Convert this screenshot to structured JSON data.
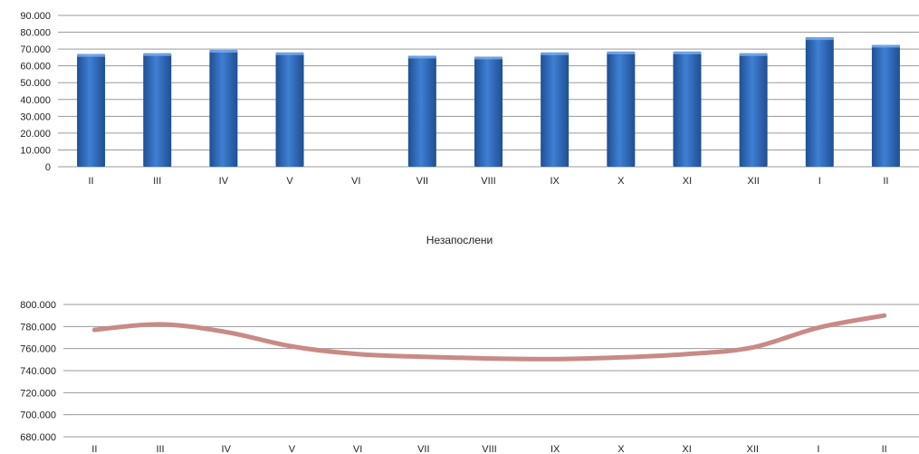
{
  "chart_data": [
    {
      "type": "bar",
      "title": "",
      "categories": [
        "II",
        "III",
        "IV",
        "V",
        "VI",
        "VII",
        "VIII",
        "IX",
        "X",
        "XI",
        "XII",
        "I",
        "II"
      ],
      "values": [
        67000,
        67500,
        69500,
        68000,
        0,
        66000,
        65500,
        68000,
        68500,
        68500,
        67500,
        77000,
        72500
      ],
      "yticks": [
        "0",
        "10.000",
        "20.000",
        "30.000",
        "40.000",
        "50.000",
        "60.000",
        "70.000",
        "80.000",
        "90.000"
      ],
      "ylim": [
        0,
        90000
      ],
      "grid": true,
      "colors": {
        "bar": "#3f7fd4",
        "bar_dark": "#1f4f92",
        "grid": "#9a9a9a"
      }
    },
    {
      "type": "line",
      "title": "Незапослени",
      "categories": [
        "II",
        "III",
        "IV",
        "V",
        "VI",
        "VII",
        "VIII",
        "IX",
        "X",
        "XI",
        "XII",
        "I",
        "II"
      ],
      "values": [
        777000,
        782000,
        775000,
        762000,
        755000,
        752500,
        751000,
        750500,
        752000,
        755000,
        761000,
        779000,
        790000
      ],
      "yticks": [
        "680.000",
        "700.000",
        "720.000",
        "740.000",
        "760.000",
        "780.000",
        "800.000"
      ],
      "ylim": [
        680000,
        800000
      ],
      "grid": true,
      "colors": {
        "line": "#c98a86",
        "grid": "#9a9a9a"
      }
    }
  ]
}
